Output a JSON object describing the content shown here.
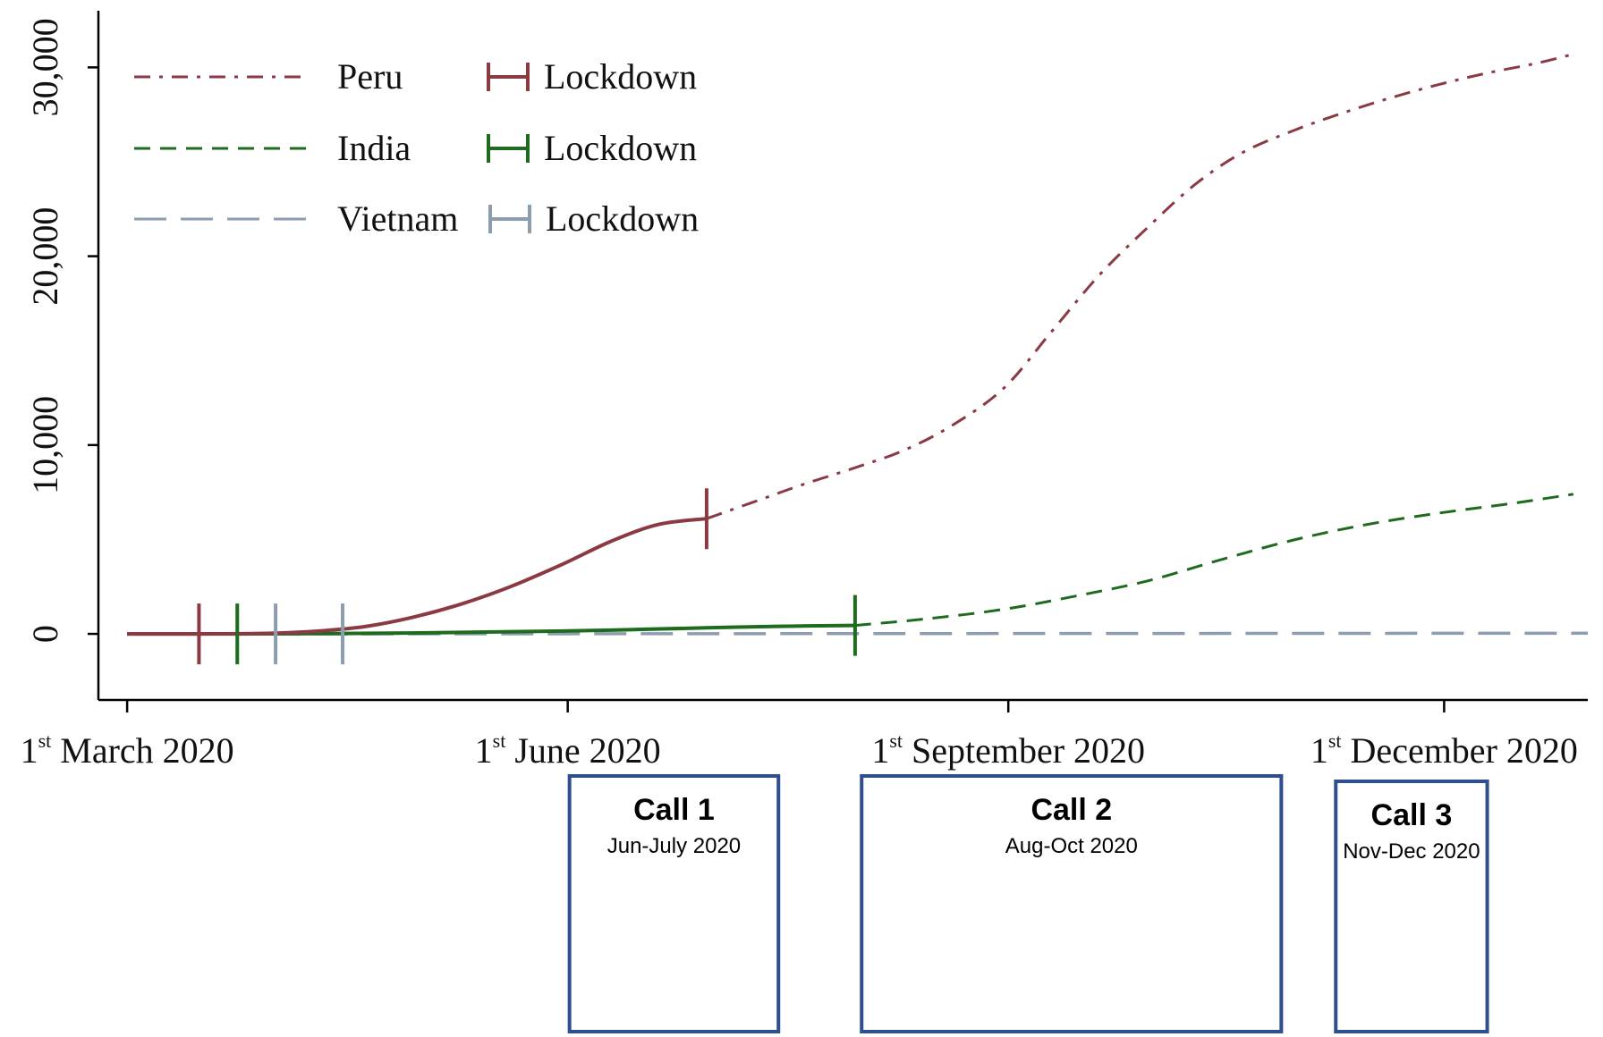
{
  "chart_data": {
    "type": "line",
    "title": "",
    "xlabel": "",
    "ylabel": "",
    "ylim": [
      -3500,
      33000
    ],
    "xlim": [
      "2020-02-24",
      "2020-12-31"
    ],
    "yticks": [
      0,
      10000,
      20000,
      30000
    ],
    "ytick_labels": [
      "0",
      "10,000",
      "20,000",
      "30,000"
    ],
    "xticks": [
      {
        "date": "2020-03-01",
        "ord": "1",
        "sup": "st",
        "rest": "March 2020"
      },
      {
        "date": "2020-06-01",
        "ord": "1",
        "sup": "st",
        "rest": "June 2020"
      },
      {
        "date": "2020-09-01",
        "ord": "1",
        "sup": "st",
        "rest": "September 2020"
      },
      {
        "date": "2020-12-01",
        "ord": "1",
        "sup": "st",
        "rest": "December 2020"
      }
    ],
    "grid": false,
    "legend_placement": "top-left",
    "series": [
      {
        "name": "Peru",
        "marker_label": "Lockdown",
        "color": "#8b3a44",
        "style": "dash-dot",
        "lockdown": [
          "2020-03-16",
          "2020-06-30"
        ],
        "points": [
          [
            "2020-03-01",
            0
          ],
          [
            "2020-03-16",
            0
          ],
          [
            "2020-03-31",
            30
          ],
          [
            "2020-04-10",
            150
          ],
          [
            "2020-04-20",
            400
          ],
          [
            "2020-04-30",
            900
          ],
          [
            "2020-05-10",
            1600
          ],
          [
            "2020-05-20",
            2500
          ],
          [
            "2020-05-31",
            3700
          ],
          [
            "2020-06-10",
            4900
          ],
          [
            "2020-06-20",
            5800
          ],
          [
            "2020-06-30",
            6100
          ],
          [
            "2020-07-10",
            7000
          ],
          [
            "2020-07-20",
            7900
          ],
          [
            "2020-07-31",
            8800
          ],
          [
            "2020-08-10",
            9700
          ],
          [
            "2020-08-20",
            11000
          ],
          [
            "2020-08-31",
            13000
          ],
          [
            "2020-09-10",
            16000
          ],
          [
            "2020-09-20",
            19000
          ],
          [
            "2020-09-30",
            21500
          ],
          [
            "2020-10-10",
            23800
          ],
          [
            "2020-10-20",
            25500
          ],
          [
            "2020-10-31",
            26700
          ],
          [
            "2020-11-10",
            27600
          ],
          [
            "2020-11-20",
            28400
          ],
          [
            "2020-11-30",
            29100
          ],
          [
            "2020-12-10",
            29700
          ],
          [
            "2020-12-20",
            30200
          ],
          [
            "2020-12-28",
            30700
          ]
        ]
      },
      {
        "name": "India",
        "marker_label": "Lockdown",
        "color": "#1e6b1e",
        "style": "dashed",
        "lockdown": [
          "2020-03-24",
          "2020-07-31"
        ],
        "points": [
          [
            "2020-03-01",
            0
          ],
          [
            "2020-03-24",
            0
          ],
          [
            "2020-04-15",
            20
          ],
          [
            "2020-05-01",
            50
          ],
          [
            "2020-05-15",
            100
          ],
          [
            "2020-05-31",
            150
          ],
          [
            "2020-06-15",
            230
          ],
          [
            "2020-06-30",
            320
          ],
          [
            "2020-07-15",
            400
          ],
          [
            "2020-07-31",
            450
          ],
          [
            "2020-08-15",
            800
          ],
          [
            "2020-08-31",
            1300
          ],
          [
            "2020-09-15",
            2000
          ],
          [
            "2020-09-30",
            2800
          ],
          [
            "2020-10-15",
            3900
          ],
          [
            "2020-10-31",
            5000
          ],
          [
            "2020-11-15",
            5800
          ],
          [
            "2020-11-30",
            6400
          ],
          [
            "2020-12-15",
            6900
          ],
          [
            "2020-12-28",
            7400
          ]
        ]
      },
      {
        "name": "Vietnam",
        "marker_label": "Lockdown",
        "color": "#8c9db0",
        "style": "long-dashed",
        "lockdown": [
          "2020-04-01",
          "2020-04-15"
        ],
        "points": [
          [
            "2020-03-01",
            0
          ],
          [
            "2020-04-01",
            0
          ],
          [
            "2020-04-15",
            0
          ],
          [
            "2020-12-31",
            35
          ]
        ]
      }
    ],
    "annotations": [
      {
        "title": "Call 1",
        "subtitle": "Jun-July 2020",
        "start": "2020-06-01",
        "end": "2020-07-15"
      },
      {
        "title": "Call 2",
        "subtitle": "Aug-Oct 2020",
        "start": "2020-08-01",
        "end": "2020-10-28"
      },
      {
        "title": "Call 3",
        "subtitle": "Nov-Dec 2020",
        "start": "2020-11-08",
        "end": "2020-12-10"
      }
    ]
  }
}
